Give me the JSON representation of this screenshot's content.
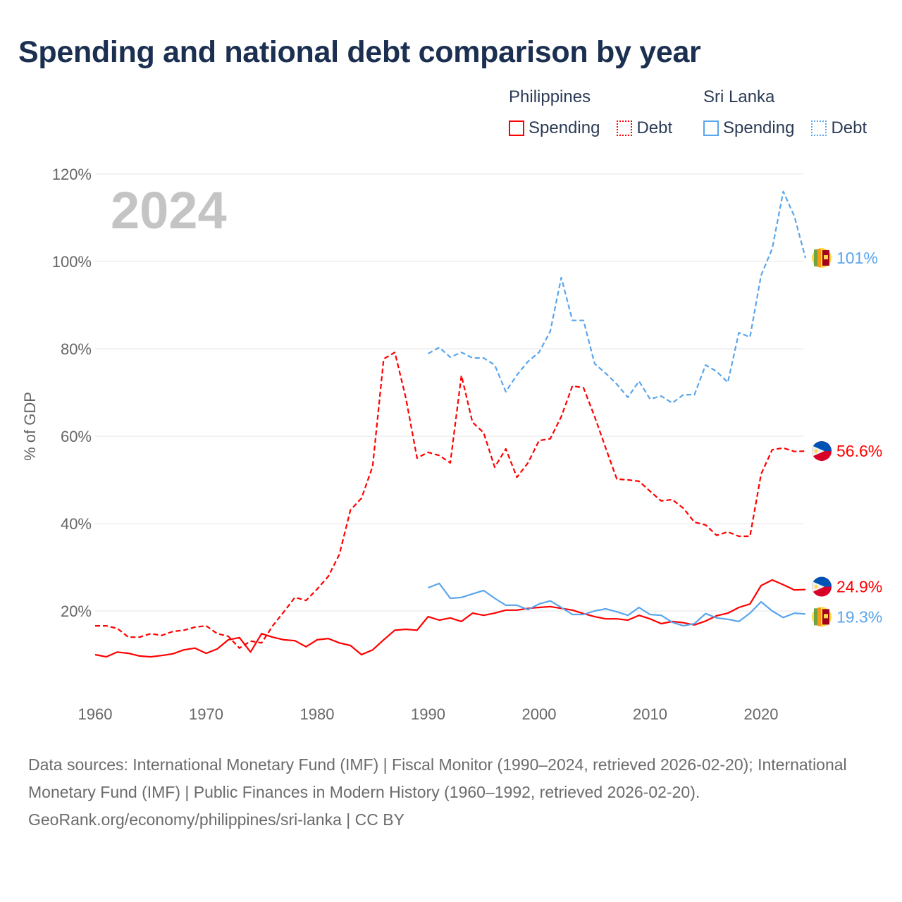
{
  "title": "Spending and national debt comparison by year",
  "legend": {
    "groups": [
      {
        "name": "Philippines",
        "color": "#ff0000",
        "items": [
          {
            "label": "Spending",
            "style": "solid"
          },
          {
            "label": "Debt",
            "style": "dotted"
          }
        ]
      },
      {
        "name": "Sri Lanka",
        "color": "#5aa5ec",
        "items": [
          {
            "label": "Spending",
            "style": "solid"
          },
          {
            "label": "Debt",
            "style": "dotted"
          }
        ]
      }
    ]
  },
  "chart_data": {
    "type": "line",
    "year_watermark": "2024",
    "ylabel": "% of GDP",
    "ylim": [
      0,
      120
    ],
    "xlim": [
      1960,
      2024
    ],
    "yticks": [
      "20%",
      "40%",
      "60%",
      "80%",
      "100%",
      "120%"
    ],
    "ytick_values": [
      20,
      40,
      60,
      80,
      100,
      120
    ],
    "xticks": [
      "1960",
      "1970",
      "1980",
      "1990",
      "2000",
      "2010",
      "2020"
    ],
    "xtick_values": [
      1960,
      1970,
      1980,
      1990,
      2000,
      2010,
      2020
    ],
    "grid": true,
    "series": [
      {
        "name": "Philippines Spending",
        "color": "#ff0000",
        "dash": false,
        "start": 1960,
        "end_label": "24.9%",
        "flag": "philippines",
        "values": [
          10.0,
          9.5,
          10.6,
          10.3,
          9.7,
          9.5,
          9.8,
          10.2,
          11.1,
          11.5,
          10.3,
          11.3,
          13.4,
          13.9,
          10.6,
          14.8,
          14.0,
          13.4,
          13.2,
          11.8,
          13.4,
          13.7,
          12.7,
          12.1,
          10.0,
          11.1,
          13.4,
          15.6,
          15.8,
          15.6,
          18.7,
          17.9,
          18.4,
          17.6,
          19.5,
          19.0,
          19.5,
          20.2,
          20.2,
          20.6,
          20.8,
          21.0,
          20.6,
          20.2,
          19.4,
          18.7,
          18.2,
          18.2,
          17.9,
          19.0,
          18.2,
          17.1,
          17.6,
          17.3,
          16.8,
          17.7,
          18.9,
          19.5,
          20.8,
          21.6,
          25.8,
          27.1,
          26.0,
          24.8,
          24.9
        ]
      },
      {
        "name": "Philippines Debt",
        "color": "#ff0000",
        "dash": true,
        "start": 1960,
        "end_label": "56.6%",
        "flag": "philippines",
        "values": [
          16.6,
          16.6,
          16.0,
          14.0,
          14.0,
          14.8,
          14.4,
          15.3,
          15.6,
          16.3,
          16.6,
          14.8,
          14.2,
          11.5,
          13.1,
          12.7,
          16.6,
          19.8,
          23.1,
          22.4,
          25.0,
          27.9,
          32.9,
          43.1,
          45.8,
          53.1,
          77.7,
          79.2,
          68.7,
          55.0,
          56.3,
          55.6,
          53.9,
          73.9,
          63.2,
          60.8,
          52.9,
          57.1,
          50.6,
          53.9,
          59.0,
          59.4,
          64.5,
          71.5,
          71.1,
          64.5,
          57.3,
          50.2,
          50.0,
          49.7,
          47.4,
          45.2,
          45.5,
          43.5,
          40.3,
          39.7,
          37.3,
          38.1,
          37.1,
          37.1,
          51.3,
          56.9,
          57.3,
          56.5,
          56.6
        ]
      },
      {
        "name": "Sri Lanka Spending",
        "color": "#5aa5ec",
        "dash": false,
        "start": 1990,
        "end_label": "19.3%",
        "flag": "sri-lanka",
        "values": [
          25.3,
          26.3,
          22.9,
          23.1,
          23.9,
          24.7,
          22.9,
          21.3,
          21.3,
          20.3,
          21.6,
          22.3,
          20.8,
          19.2,
          19.2,
          20.0,
          20.5,
          19.8,
          19.0,
          20.8,
          19.2,
          19.0,
          17.4,
          16.6,
          17.1,
          19.4,
          18.4,
          18.1,
          17.6,
          19.5,
          22.1,
          20.0,
          18.5,
          19.5,
          19.3
        ]
      },
      {
        "name": "Sri Lanka Debt",
        "color": "#5aa5ec",
        "dash": true,
        "start": 1990,
        "end_label": "101%",
        "flag": "sri-lanka",
        "values": [
          78.9,
          80.3,
          78.1,
          79.2,
          77.9,
          77.9,
          76.3,
          70.2,
          74.0,
          77.1,
          79.2,
          84.0,
          96.3,
          86.5,
          86.5,
          76.6,
          74.4,
          71.9,
          68.9,
          72.6,
          68.5,
          69.2,
          67.6,
          69.5,
          69.5,
          76.3,
          74.8,
          72.3,
          83.7,
          82.7,
          96.8,
          102.9,
          116.0,
          110.3,
          100.8
        ]
      }
    ]
  },
  "footer": {
    "sources": "Data sources: International Monetary Fund (IMF) | Fiscal Monitor (1990–2024, retrieved 2026-02-20); International Monetary Fund (IMF) | Public Finances in Modern History (1960–1992, retrieved 2026-02-20).",
    "credit": "GeoRank.org/economy/philippines/sri-lanka | CC BY"
  }
}
